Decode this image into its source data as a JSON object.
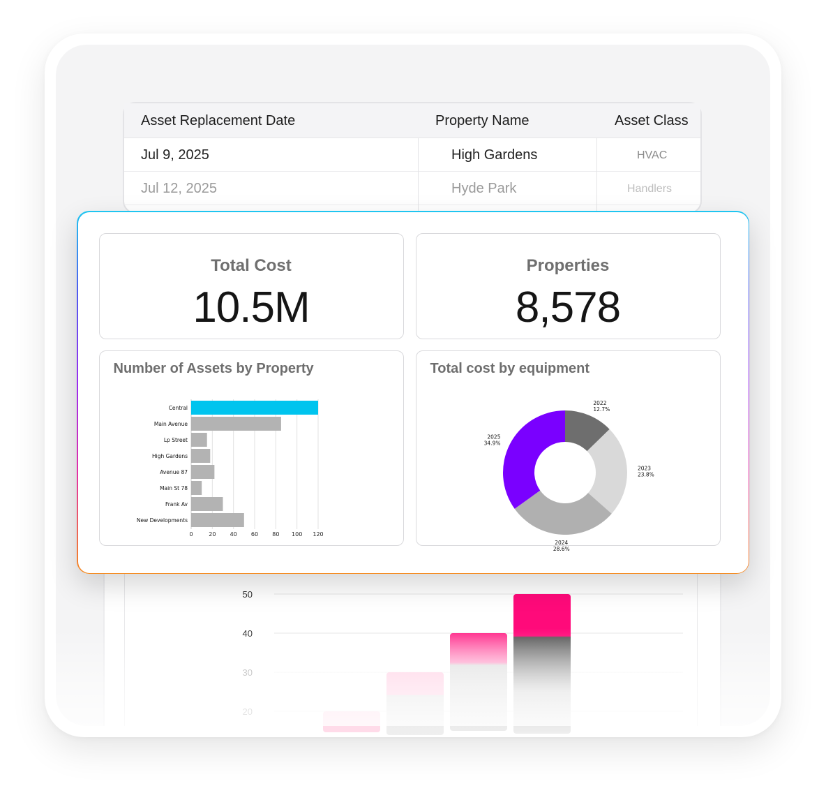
{
  "table": {
    "headers": [
      "Asset Replacement Date",
      "Property Name",
      "Asset Class"
    ],
    "rows": [
      [
        "Jul 9, 2025",
        "High Gardens",
        "HVAC"
      ],
      [
        "Jul 12, 2025",
        "Hyde Park",
        "Handlers"
      ]
    ]
  },
  "kpis": {
    "total_cost": {
      "title": "Total Cost",
      "value": "10.5M"
    },
    "properties": {
      "title": "Properties",
      "value": "8,578"
    }
  },
  "panels": {
    "assets_by_property": {
      "title": "Number of Assets by Property"
    },
    "cost_by_equipment": {
      "title": "Total cost by equipment"
    }
  },
  "colors": {
    "highlight_bar": "#00c4ee",
    "bar": "#b3b3b3",
    "pie_2022": "#6e6e6e",
    "pie_2023": "#d9d9d9",
    "pie_2024": "#b0b0b0",
    "pie_2025": "#7a00ff",
    "accent_pink": "#ff0a7a"
  },
  "chart_data": [
    {
      "type": "bar",
      "orientation": "horizontal",
      "categories": [
        "Central",
        "Main Avenue",
        "Lp Street",
        "High Gardens",
        "Avenue 87",
        "Main St 78",
        "Frank Av",
        "New Developments"
      ],
      "values": [
        120,
        85,
        15,
        18,
        22,
        10,
        30,
        50
      ],
      "xlim": [
        0,
        120
      ],
      "xticks": [
        "0",
        "20",
        "40",
        "60",
        "80",
        "100",
        "120"
      ],
      "highlight": "Central",
      "grid": true
    },
    {
      "type": "pie",
      "donut": true,
      "slices": [
        {
          "label": "2022",
          "pct": "12.7%",
          "value": 12.7
        },
        {
          "label": "2023",
          "pct": "23.8%",
          "value": 23.8
        },
        {
          "label": "2024",
          "pct": "28.6%",
          "value": 28.6
        },
        {
          "label": "2025",
          "pct": "34.9%",
          "value": 34.9
        }
      ]
    },
    {
      "type": "bar",
      "stacked": true,
      "yticks": [
        "50",
        "40",
        "30",
        "20"
      ],
      "ylim": [
        15,
        50
      ],
      "totals": [
        20,
        30,
        40,
        50
      ]
    }
  ]
}
